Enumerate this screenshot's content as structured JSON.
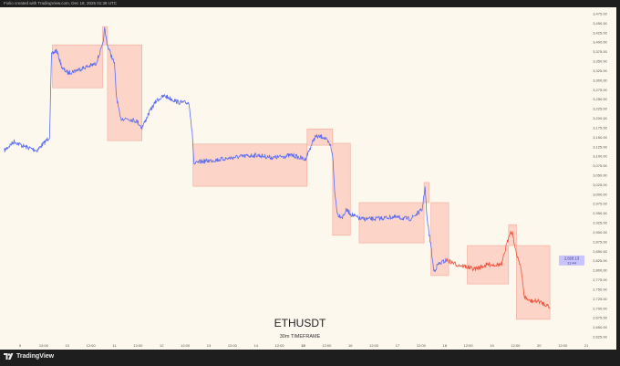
{
  "header": {
    "caption": "Fiolio created with TradingView.com, Dec 18, 2025 01:38 UTC"
  },
  "footer": {
    "brand": "TradingView",
    "logo_icon": "tradingview-logo-icon"
  },
  "colors": {
    "background": "#fdf8ee",
    "line_blue": "#5b6cf0",
    "line_red": "#f0553f",
    "zone_fill": "#fcc8bb",
    "zone_stroke": "#f2a898",
    "price_label_bg": "#c9c3ff"
  },
  "chart_data": {
    "type": "line",
    "title": "ETHUSDT",
    "subtitle": "30m TIMEFRAME",
    "xlabel": "",
    "ylabel": "",
    "ylim": [
      2625,
      3475
    ],
    "grid": false,
    "legend": "none",
    "y_ticks": [
      "3,475.00",
      "3,450.00",
      "3,425.00",
      "3,400.00",
      "3,375.00",
      "3,350.00",
      "3,325.00",
      "3,300.00",
      "3,275.00",
      "3,250.00",
      "3,225.00",
      "3,200.00",
      "3,175.00",
      "3,150.00",
      "3,125.00",
      "3,100.00",
      "3,075.00",
      "3,050.00",
      "3,025.00",
      "3,000.00",
      "2,975.00",
      "2,950.00",
      "2,925.00",
      "2,900.00",
      "2,875.00",
      "2,850.00",
      "2,825.00",
      "2,800.00",
      "2,775.00",
      "2,750.00",
      "2,725.00",
      "2,700.00",
      "2,675.00",
      "2,650.00",
      "2,625.00"
    ],
    "x_ticks": [
      "9",
      "12:00",
      "10",
      "12:00",
      "11",
      "12:00",
      "12",
      "12:00",
      "13",
      "12:00",
      "14",
      "12:00",
      "15",
      "12:00",
      "16",
      "12:00",
      "17",
      "12:00",
      "18",
      "12:00",
      "19",
      "12:00",
      "20",
      "12:00",
      "21"
    ],
    "last_price": {
      "value": "2,828.13",
      "countdown": "11:44"
    },
    "series": [
      {
        "color_segments": [
          {
            "until": "12-18 01:00",
            "color": "#5b6cf0"
          },
          {
            "until": "12-20 05:30",
            "color": "#f0553f"
          }
        ],
        "points": [
          [
            "12-08 16:00",
            3115
          ],
          [
            "12-08 21:00",
            3139
          ],
          [
            "12-09 01:30",
            3127
          ],
          [
            "12-09 08:30",
            3115
          ],
          [
            "12-09 13:00",
            3139
          ],
          [
            "12-09 15:00",
            3151
          ],
          [
            "12-09 16:00",
            3367
          ],
          [
            "12-09 18:30",
            3379
          ],
          [
            "12-09 21:30",
            3331
          ],
          [
            "12-10 00:30",
            3319
          ],
          [
            "12-10 07:30",
            3331
          ],
          [
            "12-10 14:30",
            3343
          ],
          [
            "12-10 18:00",
            3391
          ],
          [
            "12-10 19:00",
            3434
          ],
          [
            "12-10 20:30",
            3391
          ],
          [
            "12-11 00:00",
            3343
          ],
          [
            "12-11 01:00",
            3259
          ],
          [
            "12-11 03:00",
            3199
          ],
          [
            "12-11 07:00",
            3199
          ],
          [
            "12-11 11:30",
            3192
          ],
          [
            "12-11 14:00",
            3175
          ],
          [
            "12-11 18:30",
            3223
          ],
          [
            "12-11 21:30",
            3247
          ],
          [
            "12-12 01:30",
            3259
          ],
          [
            "12-12 08:30",
            3242
          ],
          [
            "12-12 14:00",
            3240
          ],
          [
            "12-12 15:30",
            3163
          ],
          [
            "12-12 16:30",
            3079
          ],
          [
            "12-12 20:00",
            3086
          ],
          [
            "12-13 05:00",
            3091
          ],
          [
            "12-13 14:30",
            3098
          ],
          [
            "12-14 00:00",
            3103
          ],
          [
            "12-14 09:00",
            3096
          ],
          [
            "12-14 18:30",
            3103
          ],
          [
            "12-15 01:00",
            3091
          ],
          [
            "12-15 03:00",
            3115
          ],
          [
            "12-15 06:00",
            3151
          ],
          [
            "12-15 10:30",
            3151
          ],
          [
            "12-15 14:00",
            3127
          ],
          [
            "12-15 15:00",
            3103
          ],
          [
            "12-15 16:00",
            3007
          ],
          [
            "12-15 17:30",
            2947
          ],
          [
            "12-15 20:00",
            2940
          ],
          [
            "12-15 22:00",
            2959
          ],
          [
            "12-16 00:30",
            2947
          ],
          [
            "12-16 05:00",
            2935
          ],
          [
            "12-16 12:00",
            2935
          ],
          [
            "12-16 21:30",
            2940
          ],
          [
            "12-17 06:30",
            2935
          ],
          [
            "12-17 12:30",
            2959
          ],
          [
            "12-17 14:00",
            3019
          ],
          [
            "12-17 15:00",
            2935
          ],
          [
            "12-17 17:00",
            2863
          ],
          [
            "12-17 18:30",
            2796
          ],
          [
            "12-17 20:30",
            2815
          ],
          [
            "12-18 01:00",
            2827
          ],
          [
            "12-18 06:00",
            2815
          ],
          [
            "12-18 10:30",
            2810
          ],
          [
            "12-18 15:00",
            2803
          ],
          [
            "12-18 22:00",
            2815
          ],
          [
            "12-19 05:00",
            2815
          ],
          [
            "12-19 09:00",
            2899
          ],
          [
            "12-19 10:30",
            2899
          ],
          [
            "12-19 12:00",
            2851
          ],
          [
            "12-19 14:30",
            2815
          ],
          [
            "12-19 16:30",
            2731
          ],
          [
            "12-19 19:00",
            2719
          ],
          [
            "12-19 23:30",
            2719
          ],
          [
            "12-20 04:30",
            2707
          ],
          [
            "12-20 05:30",
            2699
          ]
        ]
      }
    ],
    "zones": [
      {
        "from": "12-09 16:30",
        "to": "12-10 18:00",
        "low": 3280,
        "high": 3393
      },
      {
        "from": "12-10 18:00",
        "to": "12-10 20:30",
        "low": 3393,
        "high": 3441
      },
      {
        "from": "12-10 20:30",
        "to": "12-11 14:00",
        "low": 3141,
        "high": 3393
      },
      {
        "from": "12-12 16:00",
        "to": "12-15 02:00",
        "low": 3021,
        "high": 3132
      },
      {
        "from": "12-15 02:00",
        "to": "12-15 15:00",
        "low": 3129,
        "high": 3172
      },
      {
        "from": "12-15 15:00",
        "to": "12-16 00:00",
        "low": 2892,
        "high": 3134
      },
      {
        "from": "12-16 04:30",
        "to": "12-17 13:30",
        "low": 2872,
        "high": 2978
      },
      {
        "from": "12-17 13:30",
        "to": "12-17 16:00",
        "low": 2978,
        "high": 3031
      },
      {
        "from": "12-17 17:00",
        "to": "12-18 02:00",
        "low": 2786,
        "high": 2978
      },
      {
        "from": "12-18 11:30",
        "to": "12-19 08:30",
        "low": 2764,
        "high": 2865
      },
      {
        "from": "12-19 08:30",
        "to": "12-19 12:30",
        "low": 2865,
        "high": 2920
      },
      {
        "from": "12-19 12:30",
        "to": "12-20 05:30",
        "low": 2671,
        "high": 2865
      }
    ]
  }
}
